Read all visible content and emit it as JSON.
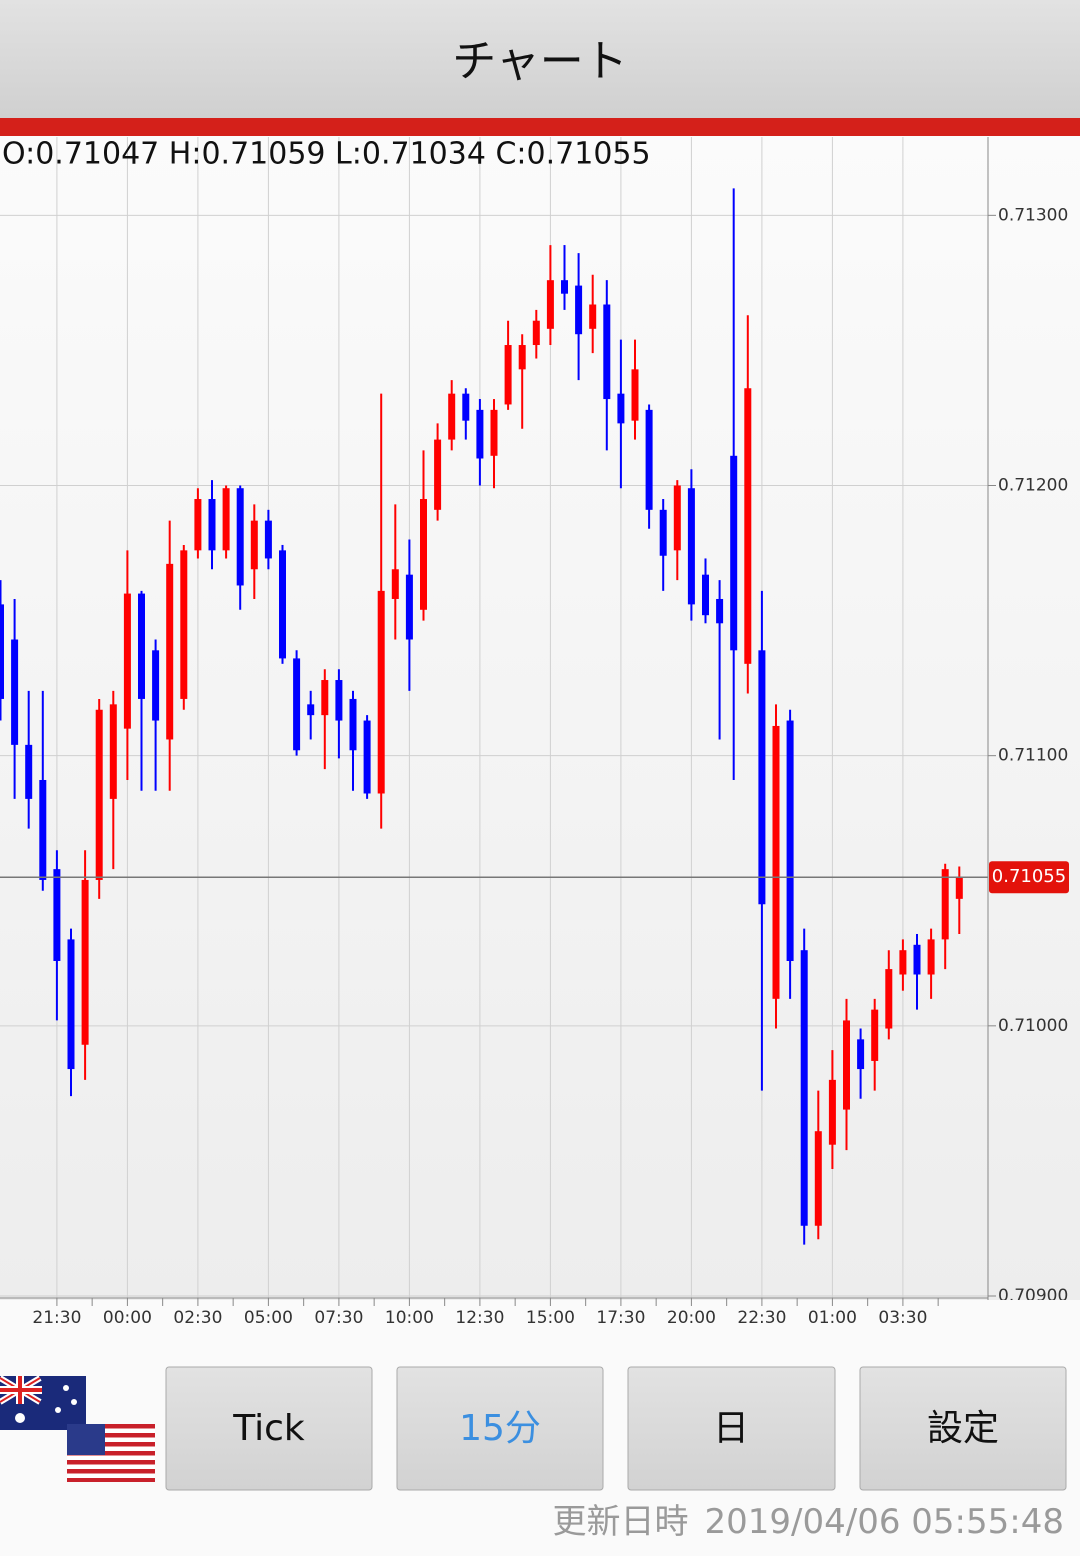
{
  "header": {
    "title": "チャート"
  },
  "chart_data": {
    "type": "candlestick",
    "ohlc_text": "O:0.71047 H:0.71059 L:0.71034 C:0.71055",
    "categories": [
      null,
      null,
      null,
      null,
      "21:30",
      null,
      null,
      null,
      null,
      "00:00",
      null,
      null,
      null,
      null,
      "02:30",
      null,
      null,
      null,
      null,
      "05:00",
      null,
      null,
      null,
      null,
      "07:30",
      null,
      null,
      null,
      null,
      "10:00",
      null,
      null,
      null,
      null,
      "12:30",
      null,
      null,
      null,
      null,
      "15:00",
      null,
      null,
      null,
      null,
      "17:30",
      null,
      null,
      null,
      null,
      "20:00",
      null,
      null,
      null,
      null,
      "22:30",
      null,
      null,
      null,
      null,
      "01:00",
      null,
      null,
      null,
      null,
      "03:30",
      null,
      null,
      null,
      null
    ],
    "open": [
      0.71156,
      0.71143,
      0.71104,
      0.71091,
      0.71058,
      0.71032,
      0.70993,
      0.71054,
      0.71084,
      0.7111,
      0.7116,
      0.71139,
      0.71106,
      0.71121,
      0.71176,
      0.71195,
      0.71176,
      0.71199,
      0.71169,
      0.71187,
      0.71176,
      0.71136,
      0.71119,
      0.71115,
      0.71128,
      0.71121,
      0.71113,
      0.71086,
      0.71158,
      0.71167,
      0.71154,
      0.71191,
      0.71217,
      0.71234,
      0.71228,
      0.71211,
      0.7123,
      0.71243,
      0.71252,
      0.71258,
      0.71276,
      0.71274,
      0.71258,
      0.71267,
      0.71234,
      0.71224,
      0.71228,
      0.71191,
      0.71176,
      0.71199,
      0.71167,
      0.71158,
      0.71211,
      0.71134,
      0.71139,
      0.7101,
      0.71113,
      0.71028,
      0.70926,
      0.70956,
      0.70969,
      0.70995,
      0.70987,
      0.70999,
      0.71019,
      0.7103,
      0.71019,
      0.71032,
      0.71047
    ],
    "high": [
      0.71165,
      0.71158,
      0.71124,
      0.71124,
      0.71065,
      0.71036,
      0.71065,
      0.71121,
      0.71124,
      0.71176,
      0.71161,
      0.71143,
      0.71187,
      0.71178,
      0.71199,
      0.71202,
      0.712,
      0.712,
      0.71193,
      0.71191,
      0.71178,
      0.71139,
      0.71124,
      0.71132,
      0.71132,
      0.71124,
      0.71115,
      0.71234,
      0.71193,
      0.7118,
      0.71213,
      0.71223,
      0.71239,
      0.71236,
      0.71232,
      0.71232,
      0.71261,
      0.71256,
      0.71265,
      0.71289,
      0.71289,
      0.71286,
      0.71278,
      0.71276,
      0.71254,
      0.71254,
      0.7123,
      0.71195,
      0.71202,
      0.71206,
      0.71173,
      0.71165,
      0.7131,
      0.71263,
      0.71161,
      0.71119,
      0.71117,
      0.71036,
      0.70976,
      0.70991,
      0.7101,
      0.70999,
      0.7101,
      0.71028,
      0.71032,
      0.71034,
      0.71036,
      0.7106,
      0.71059
    ],
    "low": [
      0.71113,
      0.71084,
      0.71073,
      0.7105,
      0.71002,
      0.70974,
      0.7098,
      0.71047,
      0.71058,
      0.71091,
      0.71087,
      0.71087,
      0.71087,
      0.71117,
      0.71173,
      0.71169,
      0.71173,
      0.71154,
      0.71158,
      0.71169,
      0.71134,
      0.711,
      0.71106,
      0.71095,
      0.71099,
      0.71087,
      0.71084,
      0.71073,
      0.71143,
      0.71124,
      0.7115,
      0.71187,
      0.71213,
      0.71217,
      0.712,
      0.71199,
      0.71228,
      0.71221,
      0.71247,
      0.71252,
      0.71265,
      0.71239,
      0.71249,
      0.71213,
      0.71199,
      0.71217,
      0.71184,
      0.71161,
      0.71165,
      0.7115,
      0.71149,
      0.71106,
      0.71091,
      0.71123,
      0.70976,
      0.70999,
      0.7101,
      0.70919,
      0.70921,
      0.70947,
      0.70954,
      0.70973,
      0.70976,
      0.70995,
      0.71013,
      0.71006,
      0.7101,
      0.71021,
      0.71034
    ],
    "close": [
      0.71121,
      0.71104,
      0.71084,
      0.71054,
      0.71024,
      0.70984,
      0.71054,
      0.71117,
      0.71119,
      0.7116,
      0.71121,
      0.71113,
      0.71171,
      0.71176,
      0.71195,
      0.71176,
      0.71199,
      0.71163,
      0.71187,
      0.71173,
      0.71136,
      0.71102,
      0.71115,
      0.71128,
      0.71113,
      0.71102,
      0.71086,
      0.71161,
      0.71169,
      0.71143,
      0.71195,
      0.71217,
      0.71234,
      0.71224,
      0.7121,
      0.71228,
      0.71252,
      0.71252,
      0.71261,
      0.71276,
      0.71271,
      0.71256,
      0.71267,
      0.71232,
      0.71223,
      0.71243,
      0.71191,
      0.71174,
      0.712,
      0.71156,
      0.71152,
      0.71149,
      0.71139,
      0.71236,
      0.71045,
      0.71111,
      0.71024,
      0.70926,
      0.70961,
      0.7098,
      0.71002,
      0.70984,
      0.71006,
      0.71021,
      0.71028,
      0.71019,
      0.71032,
      0.71058,
      0.71055
    ],
    "up_color": "#ff0000",
    "down_color": "#0000ff",
    "ylim": [
      0.709,
      0.71329
    ],
    "yticks": [
      {
        "value": 0.709,
        "label": "0.70900"
      },
      {
        "value": 0.71,
        "label": "0.71000"
      },
      {
        "value": 0.711,
        "label": "0.71100"
      },
      {
        "value": 0.712,
        "label": "0.71200"
      },
      {
        "value": 0.713,
        "label": "0.71300"
      }
    ],
    "last_price": {
      "value": 0.71055,
      "label": "0.71055"
    },
    "grid": true
  },
  "buttons": [
    "Tick",
    "15分",
    "日",
    "設定"
  ],
  "footer": {
    "label": "更新日時",
    "timestamp": "2019/04/06 05:55:48"
  }
}
